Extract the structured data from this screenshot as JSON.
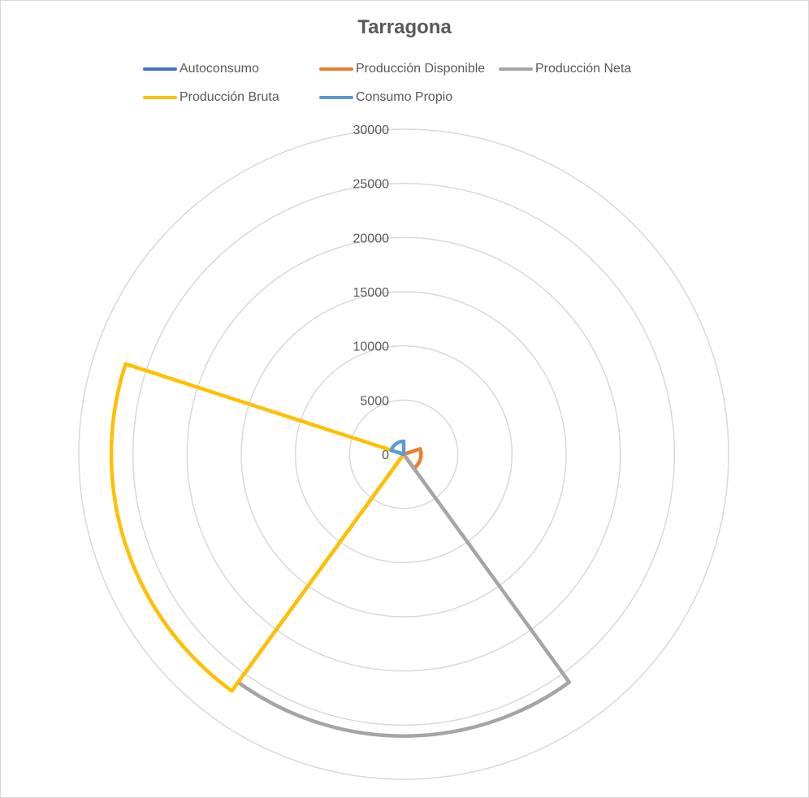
{
  "chart_data": {
    "type": "radar",
    "title": "Tarragona",
    "radial_axis": {
      "min": 0,
      "max": 30000,
      "ticks": [
        0,
        5000,
        10000,
        15000,
        20000,
        25000,
        30000
      ]
    },
    "grid": true,
    "legend_position": "top",
    "series": [
      {
        "name": "Autoconsumo",
        "color": "#4472c4",
        "values": [
          0,
          0,
          0,
          0,
          0
        ]
      },
      {
        "name": "Producción Disponible",
        "color": "#ed7d31",
        "values": [
          0,
          1600,
          0,
          0,
          0
        ]
      },
      {
        "name": "Producción Neta",
        "color": "#a5a5a5",
        "values": [
          0,
          0,
          26000,
          0,
          0
        ]
      },
      {
        "name": "Producción Bruta",
        "color": "#ffc000",
        "values": [
          0,
          0,
          0,
          27000,
          0
        ]
      },
      {
        "name": "Consumo Propio",
        "color": "#5b9bd5",
        "values": [
          0,
          0,
          0,
          0,
          1200
        ]
      }
    ]
  }
}
